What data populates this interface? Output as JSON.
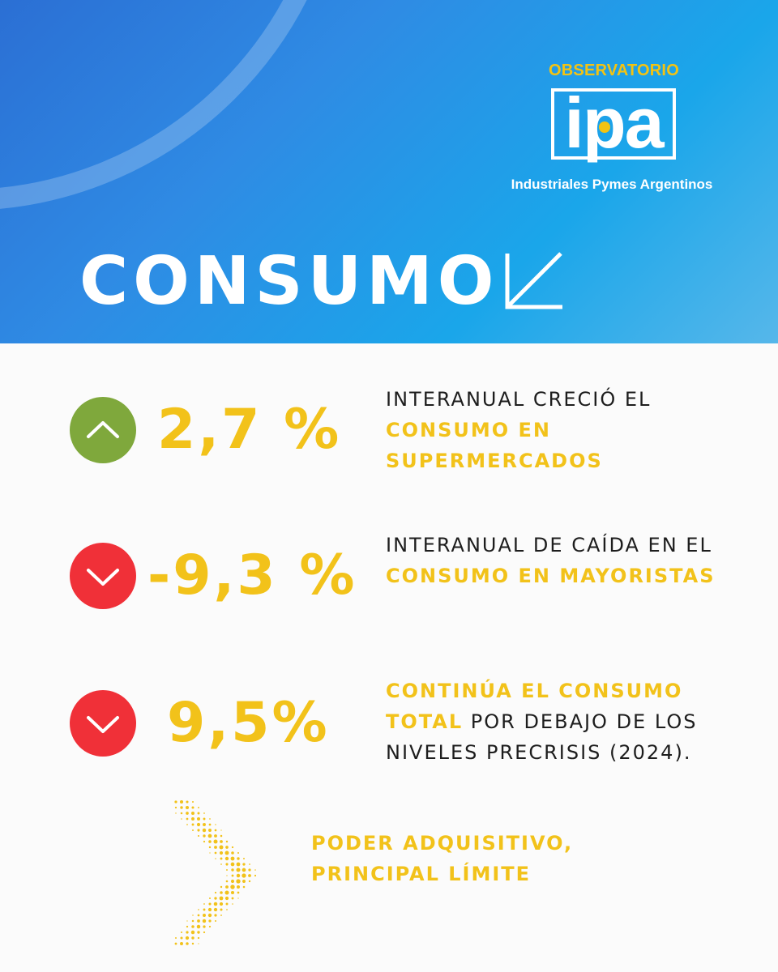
{
  "colors": {
    "accent_yellow": "#f2c21a",
    "up_green": "#7fa83c",
    "down_red": "#f03038",
    "header_blue": "#2f8be4"
  },
  "logo": {
    "top": "OBSERVATORIO",
    "letters": "ipa",
    "subtitle": "Industriales Pymes Argentinos"
  },
  "title": {
    "text": "CONSUMO",
    "icon": "arrow-down-left-icon"
  },
  "stats": [
    {
      "trend": "up",
      "icon": "chevron-up-icon",
      "value": "2,7 %",
      "parts": [
        "INTERANUAL CRECIÓ EL ",
        "CONSUMO EN SUPERMERCADOS",
        ""
      ]
    },
    {
      "trend": "down",
      "icon": "chevron-down-icon",
      "value": "-9,3 %",
      "parts": [
        "INTERANUAL DE CAÍDA EN EL ",
        "CONSUMO EN MAYORISTAS",
        ""
      ]
    },
    {
      "trend": "down",
      "icon": "chevron-down-icon",
      "value": "9,5%",
      "parts": [
        "",
        "CONTINÚA EL CONSUMO TOTAL",
        " POR DEBAJO DE LOS NIVELES PRECRISIS (2024)."
      ]
    }
  ],
  "footer": {
    "icon": "dotted-chevron-right-icon",
    "text": "PODER ADQUISITIVO, PRINCIPAL LÍMITE"
  }
}
